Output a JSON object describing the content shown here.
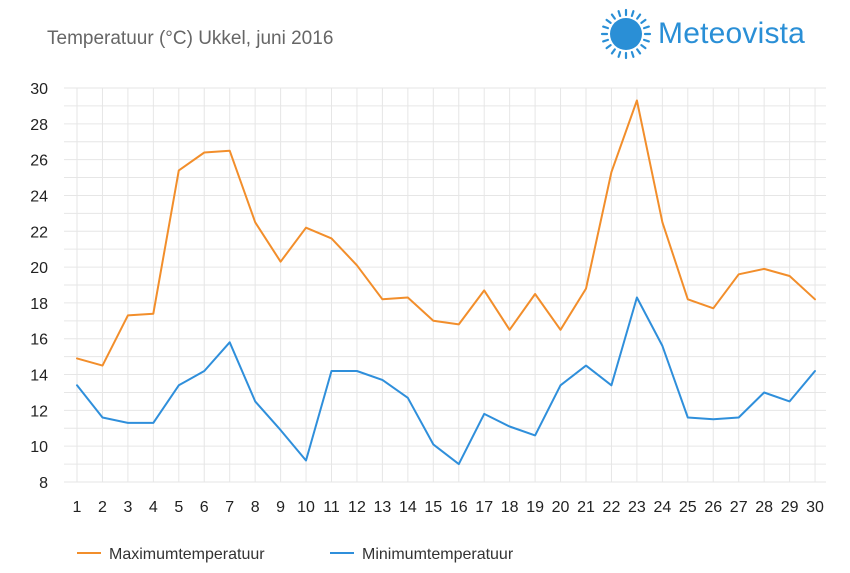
{
  "header": {
    "title": "Temperatuur (°C)  Ukkel, juni 2016",
    "brand": "Meteovista"
  },
  "colors": {
    "max": "#f28e2b",
    "min": "#2f8fdb",
    "grid": "#e6e6e6",
    "brand": "#2a8fd6"
  },
  "chart_data": {
    "type": "line",
    "title": "Temperatuur (°C)  Ukkel, juni 2016",
    "xlabel": "",
    "ylabel": "",
    "categories": [
      "1",
      "2",
      "3",
      "4",
      "5",
      "6",
      "7",
      "8",
      "9",
      "10",
      "11",
      "12",
      "13",
      "14",
      "15",
      "16",
      "17",
      "18",
      "19",
      "20",
      "21",
      "22",
      "23",
      "24",
      "25",
      "26",
      "27",
      "28",
      "29",
      "30"
    ],
    "ylim": [
      8,
      30
    ],
    "yticks": [
      "30",
      "28",
      "26",
      "24",
      "22",
      "20",
      "18",
      "16",
      "14",
      "12",
      "10",
      "8"
    ],
    "grid": true,
    "legend": "bottom-left",
    "series": [
      {
        "name": "Maximumtemperatuur",
        "values": [
          14.9,
          14.5,
          17.3,
          17.4,
          25.4,
          26.4,
          26.5,
          22.5,
          20.3,
          22.2,
          21.6,
          20.1,
          18.2,
          18.3,
          17.0,
          16.8,
          18.7,
          16.5,
          18.5,
          16.5,
          18.8,
          25.3,
          29.3,
          22.5,
          18.2,
          17.7,
          19.6,
          19.9,
          19.5,
          18.2
        ]
      },
      {
        "name": "Minimumtemperatuur",
        "values": [
          13.4,
          11.6,
          11.3,
          11.3,
          13.4,
          14.2,
          15.8,
          12.5,
          10.9,
          9.2,
          14.2,
          14.2,
          13.7,
          12.7,
          10.1,
          9.0,
          11.8,
          11.1,
          10.6,
          13.4,
          14.5,
          13.4,
          18.3,
          15.6,
          11.6,
          11.5,
          11.6,
          13.0,
          12.5,
          14.2
        ]
      }
    ]
  }
}
